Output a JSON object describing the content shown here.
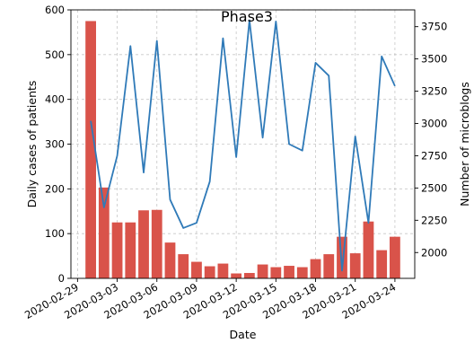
{
  "chart_data": {
    "type": "bar+line",
    "title": "Phase3",
    "xlabel": "Date",
    "ylabel_left": "Daily cases of patients",
    "ylabel_right": "Number of microblogs",
    "x_ticks": [
      "2020-02-29",
      "2020-03-03",
      "2020-03-06",
      "2020-03-09",
      "2020-03-12",
      "2020-03-15",
      "2020-03-18",
      "2020-03-21",
      "2020-03-24"
    ],
    "ylim_left": [
      0,
      600
    ],
    "yticks_left": [
      0,
      100,
      200,
      300,
      400,
      500,
      600
    ],
    "ylim_right": [
      1800,
      3880
    ],
    "yticks_right": [
      2000,
      2250,
      2500,
      2750,
      3000,
      3250,
      3500,
      3750
    ],
    "grid": true,
    "dates": [
      "2020-03-01",
      "2020-03-02",
      "2020-03-03",
      "2020-03-04",
      "2020-03-05",
      "2020-03-06",
      "2020-03-07",
      "2020-03-08",
      "2020-03-09",
      "2020-03-10",
      "2020-03-11",
      "2020-03-12",
      "2020-03-13",
      "2020-03-14",
      "2020-03-15",
      "2020-03-16",
      "2020-03-17",
      "2020-03-18",
      "2020-03-19",
      "2020-03-20",
      "2020-03-21",
      "2020-03-22",
      "2020-03-23",
      "2020-03-24"
    ],
    "series": [
      {
        "type": "bar",
        "axis": "left",
        "color": "#d9534a",
        "values": [
          575,
          203,
          125,
          125,
          152,
          153,
          80,
          54,
          37,
          27,
          33,
          11,
          12,
          31,
          25,
          28,
          25,
          43,
          54,
          93,
          56,
          127,
          63,
          93
        ]
      },
      {
        "type": "line",
        "axis": "right",
        "color": "#2f7ab8",
        "values": [
          3020,
          2350,
          2750,
          3600,
          2620,
          3640,
          2410,
          2190,
          2230,
          2550,
          3660,
          2740,
          3800,
          2890,
          3790,
          2840,
          2790,
          3470,
          3370,
          1860,
          2900,
          2230,
          3520,
          3290
        ]
      }
    ]
  }
}
